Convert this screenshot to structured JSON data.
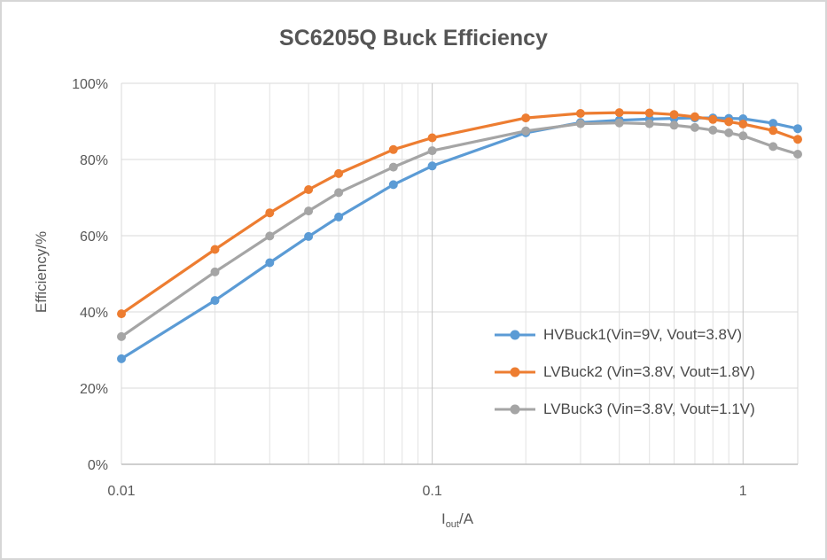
{
  "window": {
    "background": "#FFFFFF",
    "frame_border_color": "#D6D6D6"
  },
  "chart_data": {
    "type": "line",
    "title": "SC6205Q Buck Efficiency",
    "ylabel": "Efficiency/%",
    "xlabel": {
      "base": "I",
      "sub": "out",
      "suffix": "/A"
    },
    "x_scale": "log",
    "xlim": [
      0.01,
      1.5
    ],
    "ylim": [
      0,
      100
    ],
    "grid": "on",
    "legend_position": "inside-lower-right",
    "y_ticks": [
      {
        "value": 0,
        "label": "0%"
      },
      {
        "value": 20,
        "label": "20%"
      },
      {
        "value": 40,
        "label": "40%"
      },
      {
        "value": 60,
        "label": "60%"
      },
      {
        "value": 80,
        "label": "80%"
      },
      {
        "value": 100,
        "label": "100%"
      }
    ],
    "x_ticks": [
      {
        "value": 0.01,
        "label": "0.01"
      },
      {
        "value": 0.1,
        "label": "0.1"
      },
      {
        "value": 1,
        "label": "1"
      }
    ],
    "x_minor_gridlines": [
      0.02,
      0.03,
      0.04,
      0.05,
      0.06,
      0.07,
      0.08,
      0.09,
      0.2,
      0.3,
      0.4,
      0.5,
      0.6,
      0.7,
      0.8,
      0.9
    ],
    "x_major_gridlines": [
      0.1,
      1
    ],
    "x": [
      0.01,
      0.02,
      0.03,
      0.04,
      0.05,
      0.075,
      0.1,
      0.2,
      0.3,
      0.4,
      0.5,
      0.6,
      0.7,
      0.8,
      0.9,
      1,
      1.25,
      1.5
    ],
    "series": [
      {
        "name": "HVBuck1(Vin=9V, Vout=3.8V)",
        "color": "#5B9BD5",
        "values": [
          27.7,
          43.0,
          52.9,
          59.8,
          64.9,
          73.4,
          78.3,
          87.0,
          89.7,
          90.3,
          90.6,
          90.8,
          90.9,
          90.9,
          90.8,
          90.7,
          89.5,
          88.1
        ]
      },
      {
        "name": "LVBuck2 (Vin=3.8V, Vout=1.8V)",
        "color": "#ED7D31",
        "values": [
          39.5,
          56.4,
          66.0,
          72.1,
          76.3,
          82.6,
          85.7,
          90.9,
          92.1,
          92.3,
          92.2,
          91.8,
          91.2,
          90.5,
          89.9,
          89.3,
          87.6,
          85.3
        ]
      },
      {
        "name": "LVBuck3 (Vin=3.8V, Vout=1.1V)",
        "color": "#A5A5A5",
        "values": [
          33.5,
          50.5,
          59.9,
          66.5,
          71.3,
          78.0,
          82.3,
          87.5,
          89.4,
          89.6,
          89.4,
          89.0,
          88.4,
          87.7,
          87.0,
          86.2,
          83.4,
          81.4
        ]
      }
    ],
    "colors": {
      "h_gridline": "#D9D9D9",
      "v_minor_gridline": "#E2E2E2",
      "v_major_gridline": "#C6C6C6",
      "axis_line": "#BFBFBF",
      "plot_border": "#D9D9D9",
      "tick_text": "#595959",
      "title_text": "#555555",
      "legend_text": "#4A4A4A"
    }
  }
}
